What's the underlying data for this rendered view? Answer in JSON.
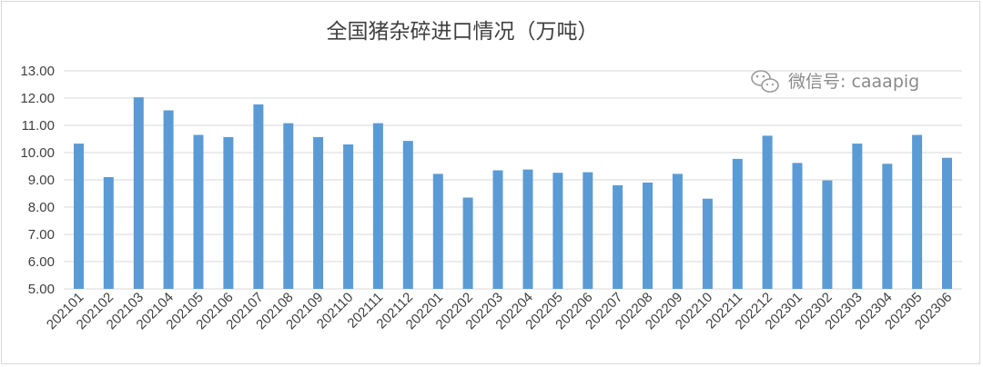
{
  "chart_data": {
    "type": "bar",
    "title": "全国猪杂碎进口情况（万吨）",
    "categories": [
      "202101",
      "202102",
      "202103",
      "202104",
      "202105",
      "202106",
      "202107",
      "202108",
      "202109",
      "202110",
      "202111",
      "202112",
      "202201",
      "202202",
      "202203",
      "202204",
      "202205",
      "202206",
      "202207",
      "202208",
      "202209",
      "202210",
      "202211",
      "202212",
      "202301",
      "202302",
      "202303",
      "202304",
      "202305",
      "202306"
    ],
    "values": [
      10.33,
      9.1,
      12.03,
      11.55,
      10.65,
      10.57,
      11.77,
      11.08,
      10.57,
      10.3,
      11.08,
      10.43,
      9.22,
      8.35,
      9.35,
      9.38,
      9.26,
      9.28,
      8.8,
      8.9,
      9.22,
      8.31,
      9.77,
      10.62,
      9.62,
      8.98,
      10.33,
      9.59,
      10.65,
      9.81
    ],
    "ylim": [
      5.0,
      13.0
    ],
    "yticks": [
      "5.00",
      "6.00",
      "7.00",
      "8.00",
      "9.00",
      "10.00",
      "11.00",
      "12.00",
      "13.00"
    ],
    "grid": true,
    "bar_color": "#5b9bd5",
    "grid_color": "#d9d9d9"
  },
  "watermark": {
    "icon": "wechat-icon",
    "text": "微信号: caaapig"
  }
}
